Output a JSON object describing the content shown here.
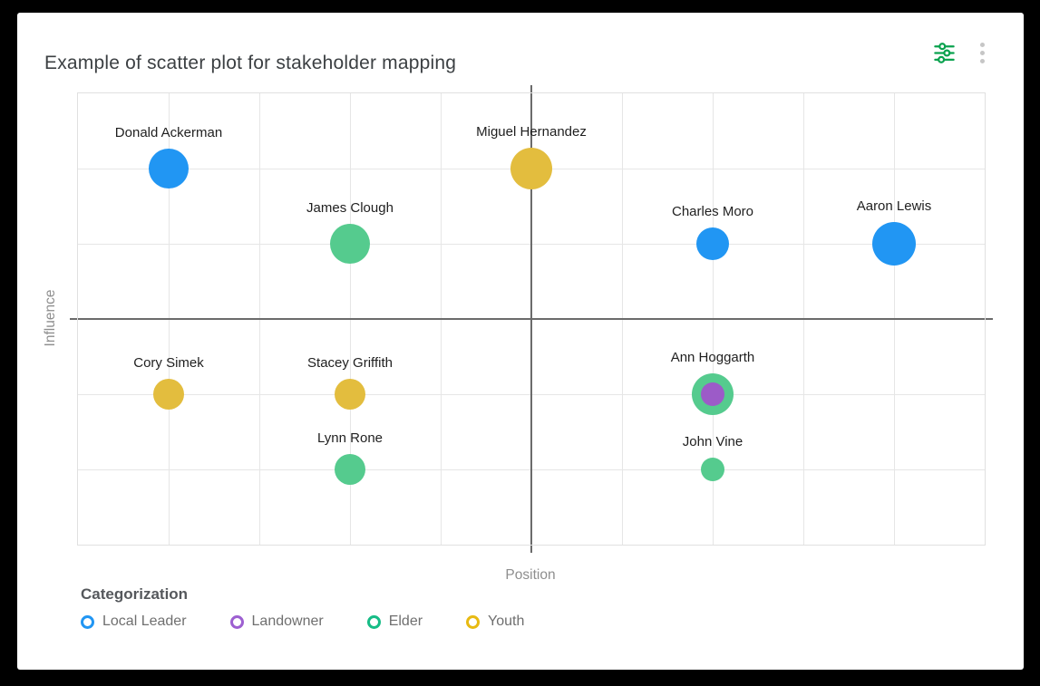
{
  "header": {
    "title": "Example of scatter plot for stakeholder mapping",
    "icons": {
      "tune_color": "#0aa24e",
      "menu_dot_color": "#c6c6c6"
    }
  },
  "chart_data": {
    "type": "scatter",
    "title": "Example of scatter plot for stakeholder mapping",
    "xlabel": "Position",
    "ylabel": "Influence",
    "grid_cols": 10,
    "grid_rows": 6,
    "x_range": [
      0,
      10
    ],
    "y_range": [
      0,
      6
    ],
    "center_line_x": 5,
    "center_line_y": 3,
    "grid": "on",
    "legend_position": "bottom-left",
    "legend_title": "Categorization",
    "categories": [
      {
        "name": "Local Leader",
        "color": "#2196f3"
      },
      {
        "name": "Landowner",
        "color": "#9d60d1"
      },
      {
        "name": "Elder",
        "color": "#16bc86"
      },
      {
        "name": "Youth",
        "color": "#e8ba12"
      }
    ],
    "points": [
      {
        "label": "Donald Ackerman",
        "x": 1,
        "y": 5,
        "category": "Local Leader",
        "radius": 22,
        "color": "#2196f3"
      },
      {
        "label": "Miguel Hernandez",
        "x": 5,
        "y": 5,
        "category": "Youth",
        "radius": 23,
        "color": "#e3bd3e"
      },
      {
        "label": "James Clough",
        "x": 3,
        "y": 4,
        "category": "Elder",
        "radius": 22,
        "color": "#55cb8e"
      },
      {
        "label": "Charles Moro",
        "x": 7,
        "y": 4,
        "category": "Local Leader",
        "radius": 18,
        "color": "#2196f3"
      },
      {
        "label": "Aaron Lewis",
        "x": 9,
        "y": 4,
        "category": "Local Leader",
        "radius": 24,
        "color": "#2196f3"
      },
      {
        "label": "Cory Simek",
        "x": 1,
        "y": 2,
        "category": "Youth",
        "radius": 17,
        "color": "#e3bd3e"
      },
      {
        "label": "Stacey Griffith",
        "x": 3,
        "y": 2,
        "category": "Youth",
        "radius": 17,
        "color": "#e3bd3e"
      },
      {
        "label": "Ann Hoggarth",
        "x": 7,
        "y": 2,
        "category": "Elder",
        "radius": 23,
        "color": "#55cb8e",
        "inner": {
          "category": "Landowner",
          "radius": 13,
          "color": "#9c5bc8"
        }
      },
      {
        "label": "Lynn Rone",
        "x": 3,
        "y": 1,
        "category": "Elder",
        "radius": 17,
        "color": "#55cb8e"
      },
      {
        "label": "John Vine",
        "x": 7,
        "y": 1,
        "category": "Elder",
        "radius": 13,
        "color": "#55cb8e"
      }
    ]
  }
}
